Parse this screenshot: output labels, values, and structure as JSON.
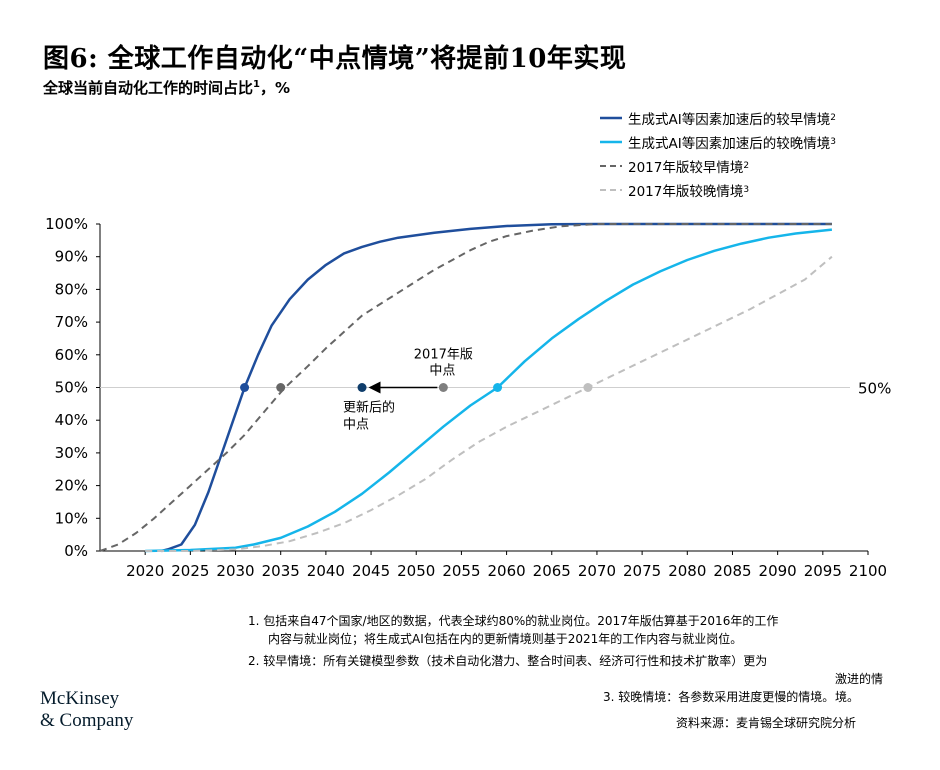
{
  "header": {
    "title": "图6: 全球工作自动化“中点情境”将提前10年实现",
    "subtitle": "全球当前自动化工作的时间占比",
    "subtitle_sup": "1",
    "subtitle_unit": "，%"
  },
  "chart_data": {
    "type": "line",
    "xlim": [
      2015,
      2100
    ],
    "ylim": [
      0,
      100
    ],
    "x_ticks": [
      "2020",
      "2025",
      "2030",
      "2035",
      "2040",
      "2045",
      "2050",
      "2055",
      "2060",
      "2065",
      "2070",
      "2075",
      "2080",
      "2085",
      "2090",
      "2095",
      "2100"
    ],
    "y_ticks": [
      "0%",
      "10%",
      "20%",
      "30%",
      "40%",
      "50%",
      "60%",
      "70%",
      "80%",
      "90%",
      "100%"
    ],
    "reference_line": {
      "y": 50,
      "label": "50%"
    },
    "legend_placement": "top-right",
    "series": [
      {
        "name": "生成式AI等因素加速后的较早情境",
        "name_sup": "2",
        "color": "#1f4e9c",
        "dash": "solid",
        "points": [
          [
            2021.8,
            0
          ],
          [
            2022.5,
            0.5
          ],
          [
            2024,
            2
          ],
          [
            2025.5,
            8
          ],
          [
            2027,
            18
          ],
          [
            2028.5,
            30
          ],
          [
            2030,
            42
          ],
          [
            2031,
            50
          ],
          [
            2032.5,
            60
          ],
          [
            2034,
            69
          ],
          [
            2036,
            77
          ],
          [
            2038,
            83
          ],
          [
            2040,
            87.5
          ],
          [
            2042,
            91
          ],
          [
            2044,
            93
          ],
          [
            2046,
            94.6
          ],
          [
            2048,
            95.8
          ],
          [
            2052,
            97.3
          ],
          [
            2056,
            98.5
          ],
          [
            2060,
            99.4
          ],
          [
            2065,
            99.9
          ],
          [
            2070,
            100
          ],
          [
            2096,
            100
          ]
        ],
        "midpoint": 2031
      },
      {
        "name": "生成式AI等因素加速后的较晚情境",
        "name_sup": "3",
        "color": "#15b5ea",
        "dash": "solid",
        "points": [
          [
            2020,
            0
          ],
          [
            2025,
            0.3
          ],
          [
            2030,
            1
          ],
          [
            2032,
            2
          ],
          [
            2035,
            4
          ],
          [
            2038,
            7.5
          ],
          [
            2041,
            12
          ],
          [
            2044,
            17.5
          ],
          [
            2047,
            24
          ],
          [
            2050,
            31
          ],
          [
            2053,
            38
          ],
          [
            2056,
            44.5
          ],
          [
            2059,
            50
          ],
          [
            2062,
            58
          ],
          [
            2065,
            65
          ],
          [
            2068,
            71
          ],
          [
            2071,
            76.5
          ],
          [
            2074,
            81.5
          ],
          [
            2077,
            85.5
          ],
          [
            2080,
            89
          ],
          [
            2083,
            91.8
          ],
          [
            2086,
            94
          ],
          [
            2089,
            95.8
          ],
          [
            2092,
            97.1
          ],
          [
            2096,
            98.3
          ]
        ],
        "midpoint": 2059
      },
      {
        "name": "2017年版较早情境",
        "name_sup": "2",
        "color": "#666666",
        "dash": "dashed",
        "points": [
          [
            2015,
            0
          ],
          [
            2017,
            2
          ],
          [
            2019,
            5.5
          ],
          [
            2021,
            10
          ],
          [
            2023,
            15
          ],
          [
            2025,
            20
          ],
          [
            2027,
            25
          ],
          [
            2029,
            30
          ],
          [
            2031,
            35.5
          ],
          [
            2033,
            42
          ],
          [
            2035,
            48.5
          ],
          [
            2035.5,
            50
          ],
          [
            2038,
            56.5
          ],
          [
            2040,
            62
          ],
          [
            2042,
            67
          ],
          [
            2044,
            72
          ],
          [
            2046,
            75.5
          ],
          [
            2048,
            79
          ],
          [
            2050,
            82.5
          ],
          [
            2052,
            86
          ],
          [
            2054,
            89
          ],
          [
            2056,
            92
          ],
          [
            2058,
            94.5
          ],
          [
            2060,
            96.3
          ],
          [
            2063,
            98
          ],
          [
            2066,
            99.3
          ],
          [
            2070,
            100
          ],
          [
            2096,
            100
          ]
        ],
        "midpoint": 2035
      },
      {
        "name": "2017年版较晚情境",
        "name_sup": "3",
        "color": "#bfbfbf",
        "dash": "dashed",
        "points": [
          [
            2020,
            0
          ],
          [
            2025,
            0
          ],
          [
            2030,
            0.5
          ],
          [
            2033,
            1.5
          ],
          [
            2036,
            3
          ],
          [
            2039,
            5.5
          ],
          [
            2042,
            8.5
          ],
          [
            2045,
            12.5
          ],
          [
            2048,
            17
          ],
          [
            2051,
            22
          ],
          [
            2054,
            28
          ],
          [
            2057,
            33.5
          ],
          [
            2060,
            38
          ],
          [
            2063,
            42
          ],
          [
            2066,
            46
          ],
          [
            2069,
            50
          ],
          [
            2072,
            54
          ],
          [
            2075,
            58
          ],
          [
            2078,
            62
          ],
          [
            2081,
            66
          ],
          [
            2084,
            70
          ],
          [
            2087,
            74
          ],
          [
            2090,
            78.5
          ],
          [
            2093,
            83
          ],
          [
            2096,
            90
          ]
        ],
        "midpoint": 2069
      }
    ],
    "annotations": {
      "old_midpoint_label_line1": "2017年版",
      "old_midpoint_label_line2": "中点",
      "old_midpoint_x": 2053,
      "new_midpoint_label_line1": "更新后的",
      "new_midpoint_label_line2": "中点",
      "new_midpoint_x": 2044,
      "marker_dark": "#0f3d6b",
      "marker_grey": "#7f7f7f"
    }
  },
  "notes": [
    "1.  包括来自47个国家/地区的数据，代表全球约80%的就业岗位。2017年版估算基于2016年的工作",
    "内容与就业岗位；将生成式AI包括在内的更新情境则基于2021年的工作内容与就业岗位。",
    "2.  较早情境：所有关键模型参数（技术自动化潜力、整合时间表、经济可行性和技术扩散率）更为",
    "激进的情境。",
    "3.  较晚情境：各参数采用进度更慢的情境。"
  ],
  "brand": {
    "line1": "McKinsey",
    "line2": "& Company"
  },
  "source": "资料来源：麦肯锡全球研究院分析"
}
